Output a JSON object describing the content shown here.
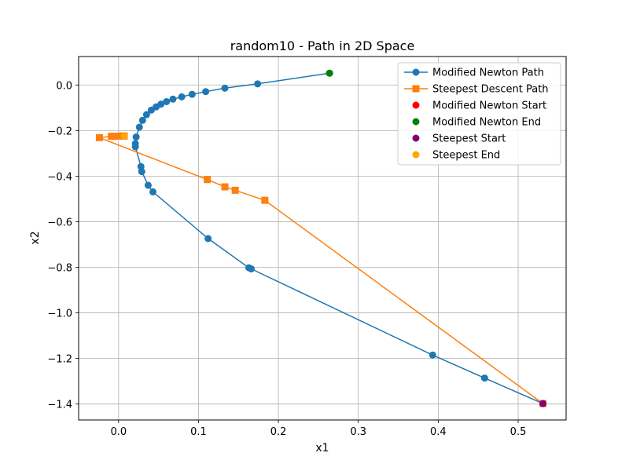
{
  "chart_data": {
    "type": "line",
    "title": "random10 - Path in 2D Space",
    "xlabel": "x1",
    "ylabel": "x2",
    "xlim": [
      -0.05,
      0.56
    ],
    "ylim": [
      -1.47,
      0.125
    ],
    "xticks": [
      0.0,
      0.1,
      0.2,
      0.3,
      0.4,
      0.5
    ],
    "xtick_labels": [
      "0.0",
      "0.1",
      "0.2",
      "0.3",
      "0.4",
      "0.5"
    ],
    "yticks": [
      0.0,
      -0.2,
      -0.4,
      -0.6,
      -0.8,
      -1.0,
      -1.2,
      -1.4
    ],
    "ytick_labels": [
      "0.0",
      "−0.2",
      "−0.4",
      "−0.6",
      "−0.8",
      "−1.0",
      "−1.2",
      "−1.4"
    ],
    "grid": true,
    "legend_position": "top-right",
    "series": [
      {
        "name": "Modified Newton Path",
        "color": "#1f77b4",
        "marker": "circle",
        "x": [
          0.531,
          0.458,
          0.393,
          0.166,
          0.163,
          0.112,
          0.043,
          0.037,
          0.029,
          0.028,
          0.021,
          0.021,
          0.022,
          0.026,
          0.03,
          0.035,
          0.041,
          0.047,
          0.053,
          0.06,
          0.068,
          0.079,
          0.092,
          0.109,
          0.133,
          0.174,
          0.264
        ],
        "y": [
          -1.398,
          -1.286,
          -1.185,
          -0.807,
          -0.802,
          -0.674,
          -0.469,
          -0.44,
          -0.38,
          -0.358,
          -0.271,
          -0.257,
          -0.228,
          -0.185,
          -0.155,
          -0.13,
          -0.11,
          -0.096,
          -0.084,
          -0.073,
          -0.062,
          -0.052,
          -0.041,
          -0.029,
          -0.014,
          0.005,
          0.052
        ]
      },
      {
        "name": "Steepest Descent Path",
        "color": "#ff7f0e",
        "marker": "square",
        "x": [
          0.531,
          0.183,
          0.146,
          0.133,
          0.111,
          -0.024,
          -0.009,
          -0.005,
          0.003,
          0.006,
          0.007
        ],
        "y": [
          -1.398,
          -0.506,
          -0.462,
          -0.447,
          -0.415,
          -0.231,
          -0.225,
          -0.225,
          -0.224,
          -0.224,
          -0.224
        ]
      }
    ],
    "points": [
      {
        "name": "Modified Newton Start",
        "color": "#ff0000",
        "x": 0.531,
        "y": -1.398
      },
      {
        "name": "Modified Newton End",
        "color": "#008000",
        "x": 0.264,
        "y": 0.052
      },
      {
        "name": "Steepest Start",
        "color": "#800080",
        "x": 0.531,
        "y": -1.398
      },
      {
        "name": "Steepest End",
        "color": "#ffa500",
        "x": 0.007,
        "y": -0.224
      }
    ]
  }
}
